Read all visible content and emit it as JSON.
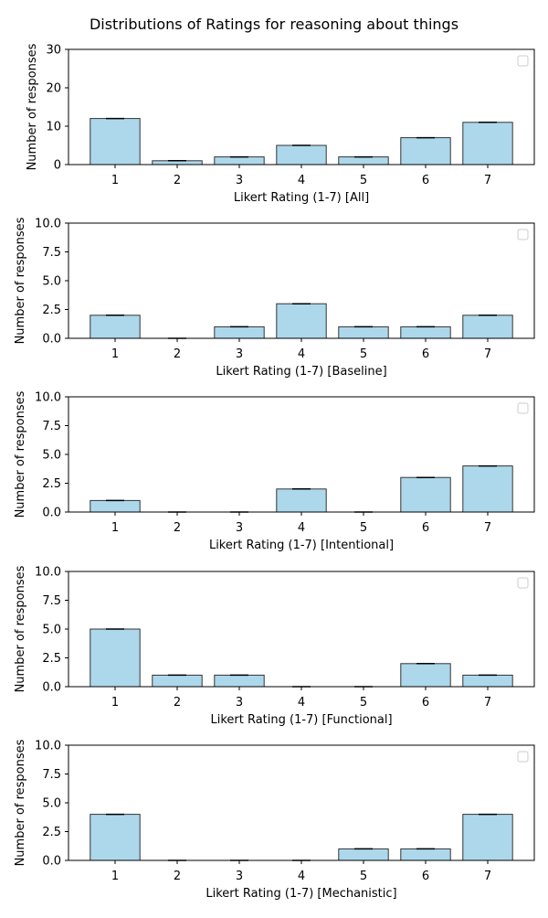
{
  "figure": {
    "title": "Distributions of Ratings for reasoning about things"
  },
  "chart_data": [
    {
      "type": "bar",
      "categories": [
        "1",
        "2",
        "3",
        "4",
        "5",
        "6",
        "7"
      ],
      "values": [
        12,
        1,
        2,
        5,
        2,
        7,
        11
      ],
      "xlabel": "Likert Rating (1-7) [All]",
      "ylabel": "Number of responses",
      "ylim": [
        0,
        30
      ],
      "yticks": [
        "0",
        "10",
        "20",
        "30"
      ],
      "legend": "top-right (empty)",
      "grid": false,
      "bar_color": "#add8eb",
      "edge_color": "#333333"
    },
    {
      "type": "bar",
      "categories": [
        "1",
        "2",
        "3",
        "4",
        "5",
        "6",
        "7"
      ],
      "values": [
        2,
        0,
        1,
        3,
        1,
        1,
        2
      ],
      "xlabel": "Likert Rating (1-7) [Baseline]",
      "ylabel": "Number of responses",
      "ylim": [
        0,
        10
      ],
      "yticks": [
        "0.0",
        "2.5",
        "5.0",
        "7.5",
        "10.0"
      ],
      "legend": "top-right (empty)",
      "grid": false,
      "bar_color": "#add8eb",
      "edge_color": "#333333"
    },
    {
      "type": "bar",
      "categories": [
        "1",
        "2",
        "3",
        "4",
        "5",
        "6",
        "7"
      ],
      "values": [
        1,
        0,
        0,
        2,
        0,
        3,
        4
      ],
      "xlabel": "Likert Rating (1-7) [Intentional]",
      "ylabel": "Number of responses",
      "ylim": [
        0,
        10
      ],
      "yticks": [
        "0.0",
        "2.5",
        "5.0",
        "7.5",
        "10.0"
      ],
      "legend": "top-right (empty)",
      "grid": false,
      "bar_color": "#add8eb",
      "edge_color": "#333333"
    },
    {
      "type": "bar",
      "categories": [
        "1",
        "2",
        "3",
        "4",
        "5",
        "6",
        "7"
      ],
      "values": [
        5,
        1,
        1,
        0,
        0,
        2,
        1
      ],
      "xlabel": "Likert Rating (1-7) [Functional]",
      "ylabel": "Number of responses",
      "ylim": [
        0,
        10
      ],
      "yticks": [
        "0.0",
        "2.5",
        "5.0",
        "7.5",
        "10.0"
      ],
      "legend": "top-right (empty)",
      "grid": false,
      "bar_color": "#add8eb",
      "edge_color": "#333333"
    },
    {
      "type": "bar",
      "categories": [
        "1",
        "2",
        "3",
        "4",
        "5",
        "6",
        "7"
      ],
      "values": [
        4,
        0,
        0,
        0,
        1,
        1,
        4
      ],
      "xlabel": "Likert Rating (1-7) [Mechanistic]",
      "ylabel": "Number of responses",
      "ylim": [
        0,
        10
      ],
      "yticks": [
        "0.0",
        "2.5",
        "5.0",
        "7.5",
        "10.0"
      ],
      "legend": "top-right (empty)",
      "grid": false,
      "bar_color": "#add8eb",
      "edge_color": "#333333"
    }
  ]
}
